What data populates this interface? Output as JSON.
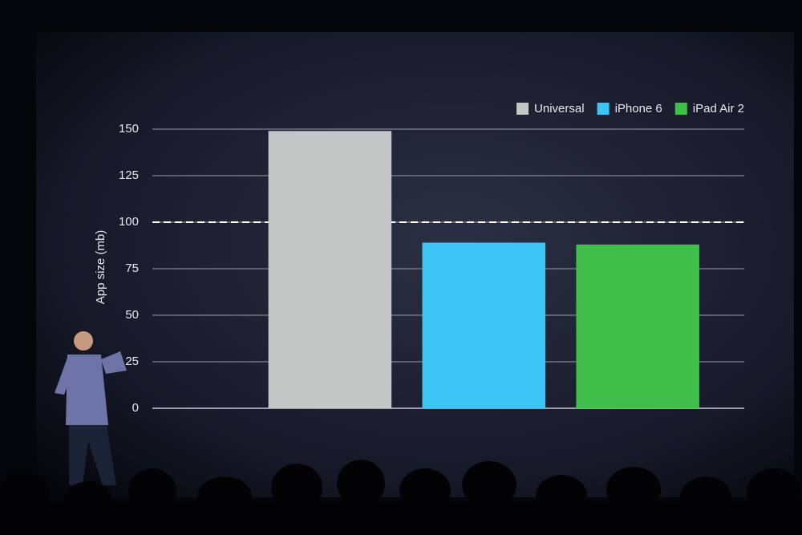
{
  "chart_data": {
    "type": "bar",
    "y_label": "App size (mb)",
    "categories": [
      null
    ],
    "series": [
      {
        "name": "Universal",
        "color": "#c3c8c6",
        "values": [
          149
        ]
      },
      {
        "name": "iPhone 6",
        "color": "#3cc6f5",
        "values": [
          89
        ]
      },
      {
        "name": "iPad Air 2",
        "color": "#3fbf4a",
        "values": [
          88
        ]
      }
    ],
    "ylim": [
      0,
      150
    ],
    "yticks": [
      0,
      25,
      50,
      75,
      100,
      125,
      150
    ],
    "grid": true,
    "reference_line": 100,
    "legend": "top-right"
  }
}
